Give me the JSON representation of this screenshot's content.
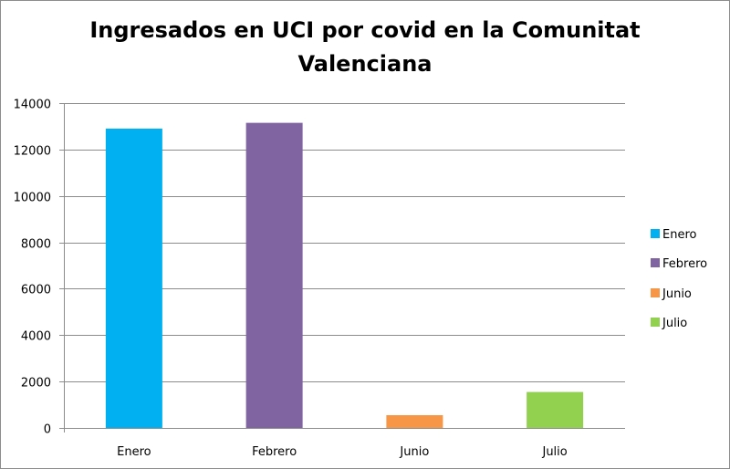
{
  "chart_data": {
    "type": "bar",
    "title_line1": "Ingresados en UCI por covid en la Comunitat",
    "title_line2": "Valenciana",
    "categories": [
      "Enero",
      "Febrero",
      "Junio",
      "Julio"
    ],
    "values": [
      12900,
      13150,
      550,
      1550
    ],
    "colors": [
      "#00b0f0",
      "#8064a2",
      "#f79646",
      "#92d050"
    ],
    "ylim": [
      0,
      14000
    ],
    "yticks": [
      0,
      2000,
      4000,
      6000,
      8000,
      10000,
      12000,
      14000
    ],
    "grid": true,
    "legend": {
      "placement": "right",
      "entries": [
        "Enero",
        "Febrero",
        "Junio",
        "Julio"
      ]
    },
    "xlabel": "",
    "ylabel": ""
  }
}
